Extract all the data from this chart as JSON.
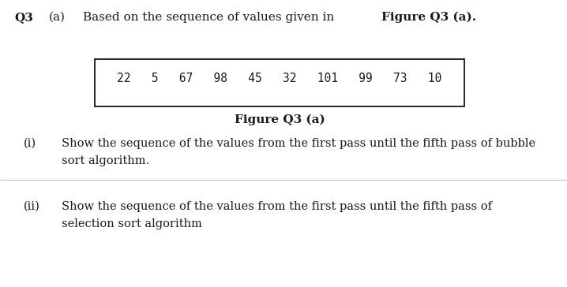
{
  "background_color": "#ffffff",
  "q_label": "Q3",
  "q_sub": "(a)",
  "q_text": "Based on the sequence of values given in ",
  "q_text_bold": "Figure Q3 (a).",
  "figure_values": "22   5   67   98   45   32   101   99   73   10",
  "figure_caption": "Figure Q3 (a)",
  "sub_i_label": "(i)",
  "sub_i_text_line1": "Show the sequence of the values from the first pass until the fifth pass of bubble",
  "sub_i_text_line2": "sort algorithm.",
  "sub_ii_label": "(ii)",
  "sub_ii_text_line1": "Show the sequence of the values from the first pass until the fifth pass of",
  "sub_ii_text_line2": "selection sort algorithm",
  "font_family": "DejaVu Serif",
  "font_size_main": 10.5,
  "font_size_q": 11,
  "text_color": "#1a1a1a"
}
